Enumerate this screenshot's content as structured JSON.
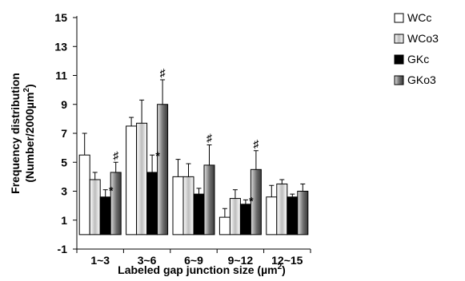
{
  "chart_data": {
    "type": "bar",
    "categories": [
      "1~3",
      "3~6",
      "6~9",
      "9~12",
      "12~15"
    ],
    "series": [
      {
        "name": "WCc",
        "values": [
          5.5,
          7.5,
          4.0,
          1.2,
          2.6
        ],
        "errors": [
          1.5,
          0.6,
          1.2,
          0.6,
          0.8
        ],
        "fill": "#ffffff",
        "pattern": "none"
      },
      {
        "name": "WCo3",
        "values": [
          3.8,
          7.7,
          4.0,
          2.5,
          3.5
        ],
        "errors": [
          0.5,
          1.6,
          0.9,
          0.6,
          0.3
        ],
        "fill": "#d8d8d8",
        "pattern": "light-gradient"
      },
      {
        "name": "GKc",
        "values": [
          2.6,
          4.3,
          2.8,
          2.1,
          2.6
        ],
        "errors": [
          0.5,
          1.2,
          0.4,
          0.3,
          0.2
        ],
        "fill": "#000000",
        "pattern": "none"
      },
      {
        "name": "GKo3",
        "values": [
          4.3,
          9.0,
          4.8,
          4.5,
          3.0
        ],
        "errors": [
          0.7,
          1.7,
          1.4,
          1.3,
          0.5
        ],
        "fill": "#8c8c8c",
        "pattern": "dark-gradient"
      }
    ],
    "xlabel": "Labeled gap junction size (µm",
    "xlabel_sup": "2",
    "xlabel_end": ")",
    "ylabel_line1": "Frequency distribution",
    "ylabel_line2": "(Number/2000µm",
    "ylabel_sup": "2",
    "ylabel_end": ")",
    "ylim": [
      -1,
      15
    ],
    "yticks": [
      -1,
      1,
      3,
      5,
      7,
      9,
      11,
      13,
      15
    ],
    "legend_position": "right",
    "annotations": [
      {
        "category": 0,
        "series": 2,
        "text": "*"
      },
      {
        "category": 0,
        "series": 3,
        "text": "♯"
      },
      {
        "category": 1,
        "series": 2,
        "text": "*"
      },
      {
        "category": 1,
        "series": 3,
        "text": "♯"
      },
      {
        "category": 2,
        "series": 3,
        "text": "♯"
      },
      {
        "category": 3,
        "series": 2,
        "text": "*"
      },
      {
        "category": 3,
        "series": 3,
        "text": "♯"
      }
    ]
  }
}
